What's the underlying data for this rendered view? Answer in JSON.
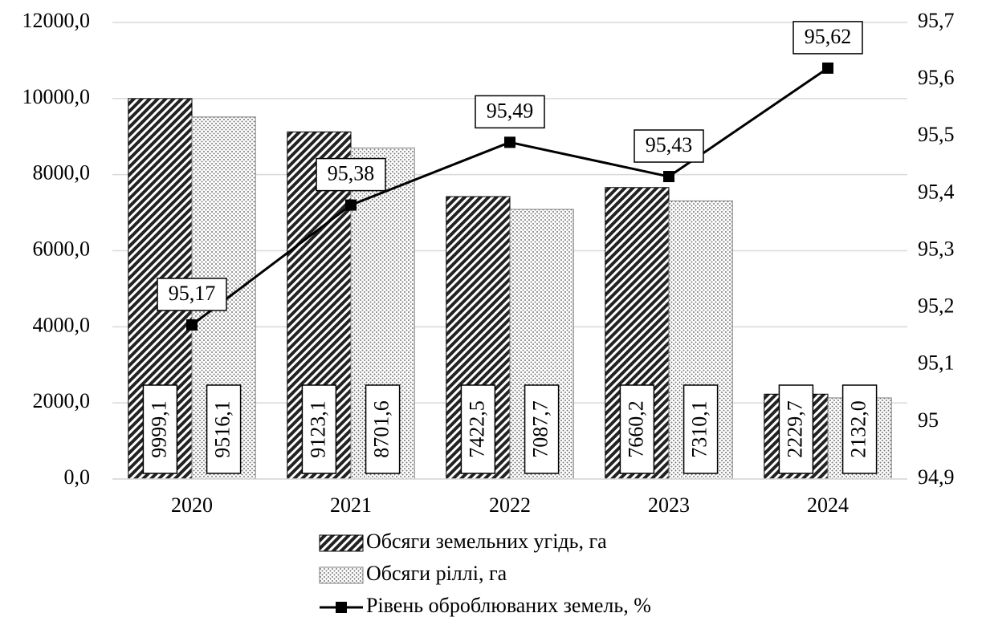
{
  "chart_data": {
    "type": "bar",
    "categories": [
      "2020",
      "2021",
      "2022",
      "2023",
      "2024"
    ],
    "series": [
      {
        "name": "Обсяги земельних угідь, га",
        "color": "#000000",
        "pattern": "hatch",
        "values": [
          9999.1,
          9123.1,
          7422.5,
          7660.2,
          2229.7
        ],
        "value_labels": [
          "9999,1",
          "9123,1",
          "7422,5",
          "7660,2",
          "2229,7"
        ]
      },
      {
        "name": "Обсяги ріллі, га",
        "color": "#808080",
        "pattern": "dots",
        "values": [
          9516.1,
          8701.6,
          7087.7,
          7310.1,
          2132.0
        ],
        "value_labels": [
          "9516,1",
          "8701,6",
          "7087,7",
          "7310,1",
          "2132,0"
        ]
      },
      {
        "name": "Рівень оброблюваних земель, %",
        "color": "#000000",
        "type": "line",
        "axis": "y2",
        "values": [
          95.17,
          95.38,
          95.49,
          95.43,
          95.62
        ],
        "value_labels": [
          "95,17",
          "95,38",
          "95,49",
          "95,43",
          "95,62"
        ]
      }
    ],
    "ylim": [
      0,
      12000
    ],
    "yticks": [
      {
        "value": 0,
        "label": "0,0"
      },
      {
        "value": 2000,
        "label": "2000,0"
      },
      {
        "value": 4000,
        "label": "4000,0"
      },
      {
        "value": 6000,
        "label": "6000,0"
      },
      {
        "value": 8000,
        "label": "8000,0"
      },
      {
        "value": 10000,
        "label": "10000,0"
      },
      {
        "value": 12000,
        "label": "12000,0"
      }
    ],
    "y2lim": [
      94.9,
      95.7
    ],
    "y2ticks": [
      {
        "value": 94.9,
        "label": "94,9"
      },
      95,
      {
        "value": 95.1,
        "label": "95,1"
      },
      {
        "value": 95.2,
        "label": "95,2"
      },
      {
        "value": 95.3,
        "label": "95,3"
      },
      {
        "value": 95.4,
        "label": "95,4"
      },
      {
        "value": 95.5,
        "label": "95,5"
      },
      {
        "value": 95.6,
        "label": "95,6"
      },
      {
        "value": 95.7,
        "label": "95,7"
      }
    ],
    "grid": true,
    "legend": "bottom"
  }
}
